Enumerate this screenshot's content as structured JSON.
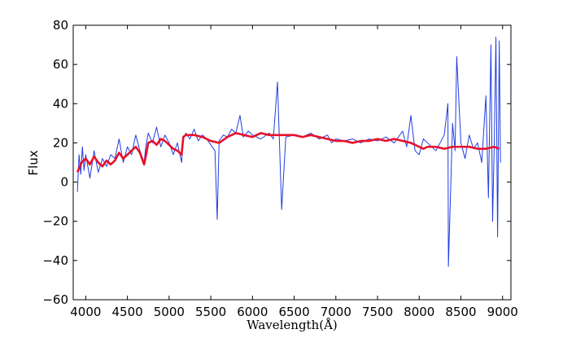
{
  "chart_data": {
    "type": "line",
    "title": "",
    "xlabel": "Wavelength(Å)",
    "ylabel": "Flux",
    "xlim": [
      3850,
      9100
    ],
    "ylim": [
      -60,
      80
    ],
    "xticks": [
      4000,
      4500,
      5000,
      5500,
      6000,
      6500,
      7000,
      7500,
      8000,
      8500,
      9000
    ],
    "yticks": [
      -60,
      -40,
      -20,
      0,
      20,
      40,
      60,
      80
    ],
    "grid": false,
    "legend": "none",
    "colors": {
      "observed": "#1f3de0",
      "model": "#e8102a"
    },
    "series": [
      {
        "key": "observed",
        "x": [
          3900,
          3920,
          3940,
          3960,
          3980,
          4000,
          4050,
          4100,
          4150,
          4200,
          4250,
          4300,
          4350,
          4400,
          4450,
          4500,
          4550,
          4600,
          4650,
          4700,
          4720,
          4750,
          4800,
          4850,
          4900,
          4950,
          5000,
          5050,
          5100,
          5150,
          5170,
          5200,
          5250,
          5300,
          5350,
          5400,
          5450,
          5500,
          5550,
          5577,
          5600,
          5650,
          5700,
          5750,
          5800,
          5850,
          5890,
          5950,
          6000,
          6100,
          6200,
          6250,
          6300,
          6350,
          6400,
          6500,
          6600,
          6700,
          6800,
          6900,
          6950,
          7000,
          7100,
          7200,
          7300,
          7400,
          7500,
          7600,
          7700,
          7800,
          7850,
          7900,
          7950,
          8000,
          8050,
          8100,
          8200,
          8300,
          8344,
          8350,
          8400,
          8430,
          8450,
          8500,
          8550,
          8600,
          8650,
          8700,
          8750,
          8800,
          8830,
          8860,
          8880,
          8900,
          8920,
          8940,
          8960,
          8975
        ],
        "y": [
          -5,
          14,
          4,
          18,
          6,
          14,
          2,
          16,
          5,
          12,
          8,
          14,
          12,
          22,
          10,
          18,
          14,
          24,
          16,
          10,
          18,
          25,
          20,
          28,
          18,
          24,
          20,
          14,
          20,
          10,
          22,
          25,
          22,
          27,
          21,
          24,
          22,
          19,
          16,
          -19,
          21,
          24,
          23,
          27,
          25,
          34,
          23,
          26,
          24,
          22,
          25,
          22,
          51,
          -14,
          23,
          24,
          23,
          25,
          22,
          24,
          20,
          22,
          21,
          22,
          20,
          22,
          21,
          23,
          20,
          26,
          18,
          34,
          16,
          14,
          22,
          20,
          16,
          24,
          40,
          -43,
          30,
          16,
          64,
          20,
          12,
          24,
          17,
          20,
          10,
          44,
          -8,
          70,
          -20,
          20,
          74,
          -28,
          72,
          10
        ]
      },
      {
        "key": "model",
        "x": [
          3900,
          3950,
          4000,
          4050,
          4100,
          4150,
          4200,
          4250,
          4300,
          4350,
          4400,
          4450,
          4500,
          4550,
          4600,
          4650,
          4700,
          4720,
          4750,
          4800,
          4850,
          4900,
          4950,
          5000,
          5050,
          5100,
          5150,
          5170,
          5200,
          5300,
          5400,
          5500,
          5600,
          5700,
          5800,
          5900,
          6000,
          6100,
          6200,
          6300,
          6400,
          6500,
          6600,
          6700,
          6800,
          6900,
          7000,
          7100,
          7200,
          7300,
          7400,
          7500,
          7600,
          7700,
          7800,
          7900,
          8000,
          8050,
          8100,
          8200,
          8300,
          8400,
          8500,
          8600,
          8700,
          8800,
          8900,
          8960
        ],
        "y": [
          5,
          10,
          12,
          9,
          13,
          10,
          8,
          11,
          9,
          11,
          15,
          12,
          14,
          16,
          18,
          15,
          9,
          13,
          20,
          21,
          19,
          22,
          21,
          19,
          17,
          16,
          14,
          23,
          24,
          24,
          23,
          21,
          20,
          23,
          25,
          24,
          23,
          25,
          24,
          24,
          24,
          24,
          23,
          24,
          23,
          22,
          21,
          21,
          20,
          21,
          21,
          22,
          21,
          22,
          21,
          20,
          18,
          17,
          18,
          18,
          17,
          18,
          18,
          18,
          17,
          17,
          18,
          17
        ]
      }
    ]
  }
}
